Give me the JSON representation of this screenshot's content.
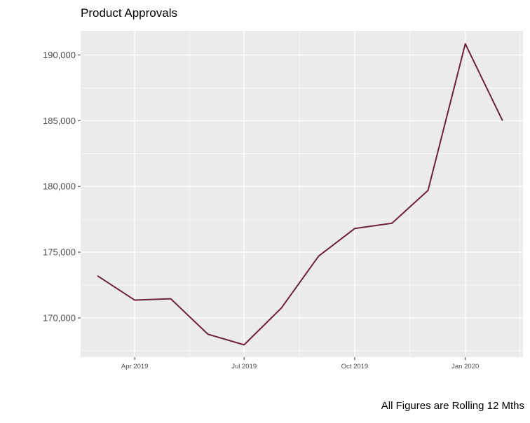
{
  "chart_data": {
    "type": "line",
    "title": "Product Approvals",
    "caption": "All Figures are Rolling 12 Mths",
    "xlabel": "",
    "ylabel": "",
    "x": [
      "2019-03-01",
      "2019-04-01",
      "2019-05-01",
      "2019-06-01",
      "2019-07-01",
      "2019-08-01",
      "2019-09-01",
      "2019-10-01",
      "2019-11-01",
      "2019-12-01",
      "2020-01-01",
      "2020-02-01"
    ],
    "series": [
      {
        "values": [
          173200,
          171350,
          171450,
          168750,
          167950,
          170750,
          174700,
          176800,
          177200,
          179700,
          190850,
          185000
        ]
      }
    ],
    "x_ticks": [
      {
        "date": "2019-04-01",
        "label": "Apr 2019"
      },
      {
        "date": "2019-07-01",
        "label": "Jul 2019"
      },
      {
        "date": "2019-10-01",
        "label": "Oct 2019"
      },
      {
        "date": "2020-01-01",
        "label": "Jan 2020"
      }
    ],
    "xlim": [
      "2019-02-15",
      "2020-02-18"
    ],
    "y_ticks": [
      170000,
      175000,
      180000,
      185000,
      190000
    ],
    "y_tick_labels": [
      "170,000",
      "175,000",
      "180,000",
      "185,000",
      "190,000"
    ],
    "ylim": [
      167010,
      191840
    ],
    "grid": true,
    "legend": "none",
    "colors": {
      "line": "#6e2239",
      "panel": "#ebebeb",
      "grid": "#ffffff",
      "text": "#4d4d4d",
      "tick": "#333333"
    }
  }
}
